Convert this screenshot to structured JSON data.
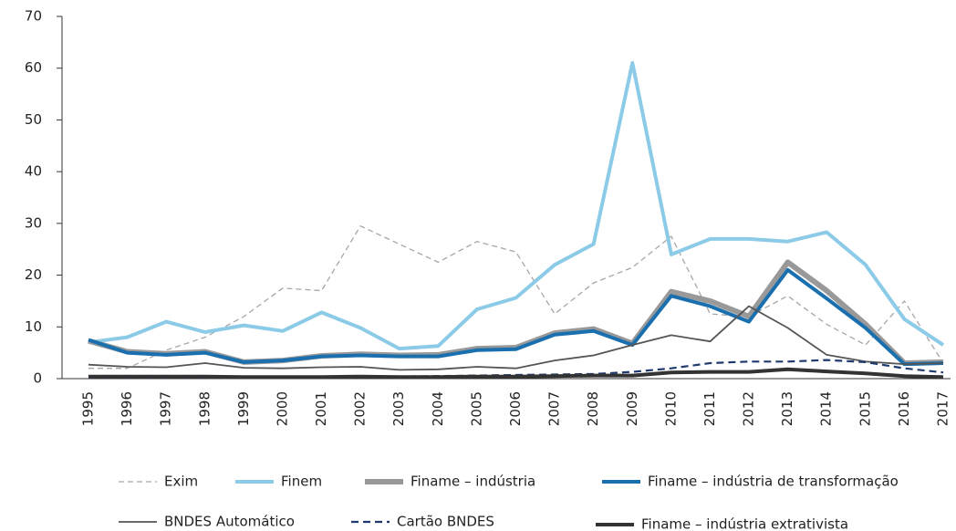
{
  "chart_data": {
    "type": "line",
    "categories": [
      "1995",
      "1996",
      "1997",
      "1998",
      "1999",
      "2000",
      "2001",
      "2002",
      "2003",
      "2004",
      "2005",
      "2006",
      "2007",
      "2008",
      "2009",
      "2010",
      "2011",
      "2012",
      "2013",
      "2014",
      "2015",
      "2016",
      "2017"
    ],
    "ylim": [
      0,
      70
    ],
    "yticks": [
      0,
      10,
      20,
      30,
      40,
      50,
      60,
      70
    ],
    "grid": false,
    "series": [
      {
        "name": "Exim",
        "color": "#a6a6a6",
        "dashed": true,
        "values": [
          2,
          2,
          5.5,
          8,
          12,
          17.5,
          17,
          29.5,
          26,
          22.5,
          26.5,
          24.5,
          12.5,
          18.5,
          21.5,
          27.5,
          12.5,
          12,
          16,
          10.5,
          6.5,
          15,
          3
        ]
      },
      {
        "name": "Finem",
        "color": "#8ccbe8",
        "dashed": false,
        "values": [
          7,
          8,
          11,
          9,
          10.3,
          9.2,
          12.8,
          9.8,
          5.8,
          6.3,
          13.4,
          15.6,
          22,
          26,
          61,
          24,
          27,
          27,
          26.5,
          28.3,
          22,
          11.5,
          6.5
        ]
      },
      {
        "name": "Finame – indústria",
        "color": "#999999",
        "dashed": false,
        "values": [
          7.3,
          5.2,
          4.8,
          5.2,
          3.2,
          3.5,
          4.4,
          4.7,
          4.5,
          4.6,
          5.8,
          6,
          8.8,
          9.6,
          6.8,
          16.8,
          15,
          12,
          22.5,
          17,
          10.5,
          3,
          3.2
        ]
      },
      {
        "name": "Finame – indústria de transformação",
        "color": "#1a6faf",
        "dashed": false,
        "values": [
          7.5,
          5,
          4.6,
          5,
          3.2,
          3.5,
          4.3,
          4.5,
          4.3,
          4.3,
          5.5,
          5.7,
          8.5,
          9.2,
          6.5,
          16,
          14,
          11,
          21,
          15.5,
          9.8,
          2.8,
          3
        ]
      },
      {
        "name": "BNDES Automático",
        "color": "#555555",
        "dashed": false,
        "values": [
          2.7,
          2.3,
          2.2,
          3,
          2.1,
          2,
          2.2,
          2.3,
          1.7,
          1.8,
          2.3,
          2,
          3.5,
          4.5,
          6.5,
          8.4,
          7.2,
          14,
          9.8,
          4.6,
          3.3,
          2.8,
          3
        ]
      },
      {
        "name": "Cartão BNDES",
        "color": "#1f3a6e",
        "dashed": true,
        "values": [
          0.2,
          0.2,
          0.2,
          0.2,
          0.2,
          0.2,
          0.3,
          0.4,
          0.4,
          0.5,
          0.6,
          0.7,
          0.8,
          0.9,
          1.3,
          2,
          3,
          3.3,
          3.3,
          3.6,
          3.2,
          2,
          1.2
        ]
      },
      {
        "name": "Finame – indústria extrativista",
        "color": "#333333",
        "dashed": false,
        "values": [
          0.4,
          0.4,
          0.4,
          0.4,
          0.3,
          0.3,
          0.3,
          0.4,
          0.3,
          0.3,
          0.4,
          0.4,
          0.5,
          0.6,
          0.6,
          1.2,
          1.3,
          1.3,
          1.8,
          1.4,
          1,
          0.5,
          0.3
        ]
      }
    ]
  }
}
